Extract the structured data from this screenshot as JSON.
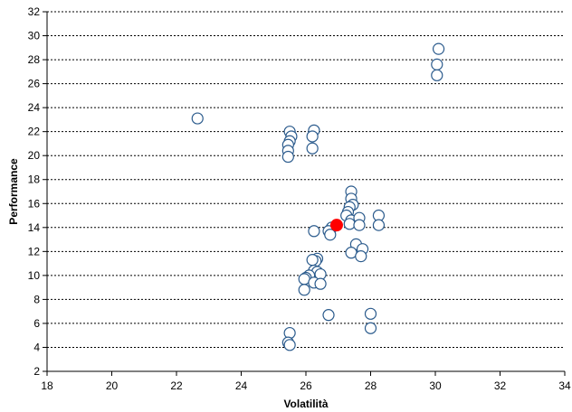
{
  "chart_data": {
    "type": "scatter",
    "xlabel": "Volatilità",
    "ylabel": "Performance",
    "xlim": [
      18,
      34
    ],
    "ylim": [
      2,
      32
    ],
    "xticks": [
      18,
      20,
      22,
      24,
      26,
      28,
      30,
      32,
      34
    ],
    "yticks": [
      2,
      4,
      6,
      8,
      10,
      12,
      14,
      16,
      18,
      20,
      22,
      24,
      26,
      28,
      30,
      32
    ],
    "grid": "horizontal dashed",
    "colors": {
      "point_stroke": "#2a5a8c",
      "highlight": "#ff0000",
      "axis": "#000000"
    },
    "points": [
      [
        22.65,
        23.1
      ],
      [
        25.5,
        22.0
      ],
      [
        25.55,
        21.6
      ],
      [
        25.5,
        21.2
      ],
      [
        25.45,
        20.9
      ],
      [
        25.45,
        20.4
      ],
      [
        25.45,
        19.9
      ],
      [
        26.25,
        22.1
      ],
      [
        26.2,
        21.6
      ],
      [
        26.2,
        20.6
      ],
      [
        30.1,
        28.9
      ],
      [
        30.05,
        27.6
      ],
      [
        30.05,
        26.7
      ],
      [
        27.4,
        17.0
      ],
      [
        27.4,
        16.4
      ],
      [
        27.45,
        15.9
      ],
      [
        27.35,
        15.7
      ],
      [
        27.3,
        15.3
      ],
      [
        27.25,
        15.0
      ],
      [
        27.4,
        14.6
      ],
      [
        27.35,
        14.3
      ],
      [
        27.65,
        14.8
      ],
      [
        27.65,
        14.2
      ],
      [
        28.25,
        15.0
      ],
      [
        28.25,
        14.2
      ],
      [
        26.8,
        14.0
      ],
      [
        26.7,
        13.7
      ],
      [
        26.75,
        13.4
      ],
      [
        26.25,
        13.7
      ],
      [
        27.55,
        12.6
      ],
      [
        27.75,
        12.2
      ],
      [
        27.4,
        11.9
      ],
      [
        27.7,
        11.6
      ],
      [
        26.35,
        11.4
      ],
      [
        26.3,
        11.2
      ],
      [
        26.2,
        11.3
      ],
      [
        26.25,
        10.4
      ],
      [
        26.35,
        10.3
      ],
      [
        26.45,
        10.1
      ],
      [
        26.1,
        10.0
      ],
      [
        26.0,
        9.8
      ],
      [
        25.95,
        9.7
      ],
      [
        26.25,
        9.4
      ],
      [
        26.45,
        9.3
      ],
      [
        25.95,
        8.8
      ],
      [
        26.7,
        6.7
      ],
      [
        28.0,
        6.8
      ],
      [
        28.0,
        5.6
      ],
      [
        25.5,
        5.2
      ],
      [
        25.45,
        4.4
      ],
      [
        25.5,
        4.2
      ]
    ],
    "highlight": [
      26.95,
      14.2
    ]
  }
}
